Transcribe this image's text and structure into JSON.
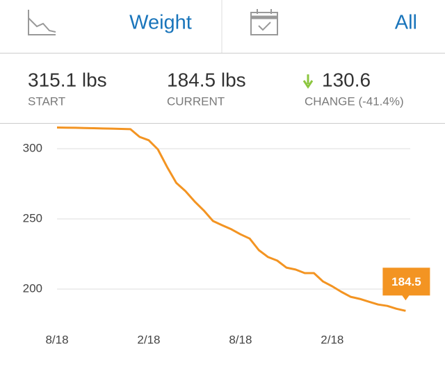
{
  "header": {
    "title": "Weight",
    "range": "All"
  },
  "stats": [
    {
      "value": "315.1 lbs",
      "label": "START"
    },
    {
      "value": "184.5 lbs",
      "label": "CURRENT"
    },
    {
      "value": "130.6",
      "label": "CHANGE (-41.4%)"
    }
  ],
  "chart_data": {
    "type": "line",
    "color": "#f39422",
    "x": [
      0,
      1,
      2,
      3,
      4,
      5,
      6,
      7,
      8,
      9,
      10,
      11,
      12,
      13,
      14,
      15,
      16,
      17,
      18,
      19,
      20,
      21,
      22,
      23,
      24,
      25,
      26,
      27,
      28,
      29,
      30,
      31,
      32,
      33,
      34,
      35,
      36,
      37,
      38
    ],
    "values": [
      315.1,
      315.0,
      314.9,
      314.7,
      314.6,
      314.4,
      314.3,
      314.1,
      313.9,
      308.4,
      306,
      299.5,
      287,
      275.7,
      269.8,
      262.4,
      256,
      248.5,
      245.5,
      242.6,
      239,
      236,
      227.7,
      222.8,
      220.3,
      215.3,
      213.9,
      211.4,
      211.4,
      205.4,
      202,
      198,
      194.5,
      193,
      191,
      189,
      188,
      186,
      184.5
    ],
    "xlim": [
      0,
      38.5
    ],
    "xticks": [
      {
        "value": 0,
        "label": "8/18"
      },
      {
        "value": 10,
        "label": "2/18"
      },
      {
        "value": 20,
        "label": "8/18"
      },
      {
        "value": 30,
        "label": "2/18"
      }
    ],
    "ylim": [
      175,
      318
    ],
    "yticks": [
      200,
      250,
      300
    ],
    "grid": true
  }
}
